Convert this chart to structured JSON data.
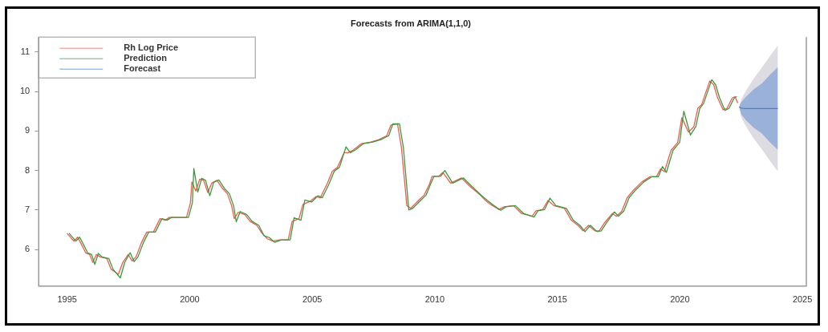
{
  "chart_data": {
    "type": "line",
    "title": "Forecasts from ARIMA(1,1,0)",
    "xlim": [
      1993.84,
      2025.16
    ],
    "xticks": [
      1995,
      2000,
      2005,
      2010,
      2015,
      2020,
      2025
    ],
    "ylim": [
      5.07,
      11.38
    ],
    "yticks": [
      6,
      7,
      8,
      9,
      10,
      11
    ],
    "grid": false,
    "legend": "top left",
    "marker": "none",
    "line_style": "solid",
    "series": [
      {
        "name": "Rh Log Price",
        "color": "#f05a55",
        "x": [
          1995.0,
          1995.27,
          1995.43,
          1995.6,
          1995.76,
          1995.92,
          1996.05,
          1996.19,
          1996.35,
          1996.62,
          1996.79,
          1997.09,
          1997.27,
          1997.49,
          1997.65,
          1997.81,
          1998.03,
          1998.25,
          1998.52,
          1998.79,
          1999.0,
          1999.17,
          1999.49,
          1999.87,
          2000.03,
          2000.09,
          2000.25,
          2000.41,
          2000.57,
          2000.74,
          2000.9,
          2001.11,
          2001.33,
          2001.54,
          2001.71,
          2001.82,
          2001.98,
          2002.25,
          2002.47,
          2002.74,
          2002.95,
          2003.17,
          2003.39,
          2003.66,
          2004.02,
          2004.18,
          2004.46,
          2004.62,
          2004.89,
          2005.16,
          2005.33,
          2005.6,
          2005.82,
          2006.03,
          2006.3,
          2006.47,
          2006.68,
          2007.01,
          2007.39,
          2007.72,
          2008.04,
          2008.21,
          2008.48,
          2008.64,
          2008.86,
          2009.02,
          2009.29,
          2009.57,
          2009.78,
          2009.89,
          2010.16,
          2010.33,
          2010.65,
          2011.09,
          2011.41,
          2011.85,
          2012.07,
          2012.28,
          2012.61,
          2012.83,
          2013.21,
          2013.54,
          2013.97,
          2014.13,
          2014.4,
          2014.62,
          2014.86,
          2015.29,
          2015.57,
          2015.84,
          2016.05,
          2016.27,
          2016.54,
          2016.71,
          2016.92,
          2017.25,
          2017.41,
          2017.63,
          2017.85,
          2018.12,
          2018.45,
          2018.77,
          2019.04,
          2019.21,
          2019.37,
          2019.64,
          2019.91,
          2020.08,
          2020.35,
          2020.57,
          2020.73,
          2020.89,
          2021.22,
          2021.38,
          2021.54,
          2021.76,
          2021.92,
          2022.14,
          2022.25,
          2022.36
        ],
        "values": [
          6.41,
          6.21,
          6.31,
          6.11,
          5.91,
          5.87,
          5.67,
          5.87,
          5.81,
          5.77,
          5.5,
          5.37,
          5.67,
          5.87,
          5.71,
          5.81,
          6.17,
          6.44,
          6.44,
          6.78,
          6.74,
          6.81,
          6.81,
          6.81,
          7.18,
          7.71,
          7.48,
          7.78,
          7.75,
          7.44,
          7.68,
          7.75,
          7.55,
          7.41,
          7.11,
          6.78,
          6.94,
          6.88,
          6.71,
          6.61,
          6.41,
          6.27,
          6.21,
          6.24,
          6.24,
          6.71,
          6.78,
          7.14,
          7.21,
          7.34,
          7.31,
          7.65,
          7.98,
          8.08,
          8.45,
          8.45,
          8.52,
          8.68,
          8.72,
          8.78,
          8.88,
          9.15,
          9.18,
          8.58,
          7.11,
          7.04,
          7.21,
          7.38,
          7.65,
          7.85,
          7.85,
          7.95,
          7.68,
          7.81,
          7.61,
          7.38,
          7.24,
          7.14,
          7.01,
          7.08,
          7.11,
          6.91,
          6.84,
          6.98,
          7.01,
          7.24,
          7.11,
          7.04,
          6.74,
          6.61,
          6.47,
          6.61,
          6.47,
          6.47,
          6.67,
          6.91,
          6.84,
          6.97,
          7.31,
          7.51,
          7.71,
          7.84,
          7.84,
          8.04,
          7.97,
          8.51,
          8.71,
          9.34,
          8.97,
          9.11,
          9.57,
          9.67,
          10.27,
          10.17,
          9.84,
          9.54,
          9.57,
          9.84,
          9.87,
          9.71
        ]
      },
      {
        "name": "Prediction",
        "color": "#3c9a3c",
        "x": [
          1995.08,
          1995.35,
          1995.51,
          1995.68,
          1995.84,
          1996.0,
          1996.13,
          1996.27,
          1996.43,
          1996.7,
          1996.87,
          1997.17,
          1997.35,
          1997.57,
          1997.73,
          1997.89,
          1998.11,
          1998.33,
          1998.6,
          1998.87,
          1999.08,
          1999.25,
          1999.57,
          1999.95,
          2000.11,
          2000.17,
          2000.33,
          2000.49,
          2000.65,
          2000.82,
          2000.98,
          2001.19,
          2001.41,
          2001.62,
          2001.79,
          2001.9,
          2002.06,
          2002.33,
          2002.55,
          2002.82,
          2003.03,
          2003.25,
          2003.47,
          2003.74,
          2004.1,
          2004.26,
          2004.54,
          2004.7,
          2004.97,
          2005.24,
          2005.41,
          2005.68,
          2005.9,
          2006.11,
          2006.38,
          2006.55,
          2006.76,
          2007.09,
          2007.47,
          2007.8,
          2008.12,
          2008.29,
          2008.56,
          2008.72,
          2008.94,
          2009.1,
          2009.37,
          2009.65,
          2009.86,
          2009.97,
          2010.24,
          2010.41,
          2010.73,
          2011.17,
          2011.49,
          2011.93,
          2012.15,
          2012.36,
          2012.69,
          2012.91,
          2013.29,
          2013.62,
          2014.05,
          2014.21,
          2014.48,
          2014.7,
          2014.94,
          2015.37,
          2015.65,
          2015.92,
          2016.13,
          2016.35,
          2016.62,
          2016.79,
          2017.0,
          2017.33,
          2017.49,
          2017.71,
          2017.93,
          2018.2,
          2018.53,
          2018.85,
          2019.12,
          2019.29,
          2019.45,
          2019.72,
          2019.99,
          2020.16,
          2020.43,
          2020.65,
          2020.81,
          2020.97,
          2021.3,
          2021.46,
          2021.62,
          2021.84,
          2022.0,
          2022.22,
          2022.33
        ],
        "values": [
          6.41,
          6.21,
          6.31,
          6.11,
          5.91,
          5.87,
          5.62,
          5.9,
          5.81,
          5.77,
          5.5,
          5.28,
          5.67,
          5.92,
          5.69,
          5.81,
          6.17,
          6.44,
          6.44,
          6.78,
          6.74,
          6.81,
          6.81,
          6.81,
          7.18,
          8.05,
          7.45,
          7.8,
          7.75,
          7.36,
          7.7,
          7.76,
          7.55,
          7.41,
          7.11,
          6.7,
          6.96,
          6.88,
          6.71,
          6.61,
          6.35,
          6.3,
          6.18,
          6.24,
          6.24,
          6.8,
          6.74,
          7.25,
          7.2,
          7.36,
          7.31,
          7.65,
          7.98,
          8.08,
          8.6,
          8.45,
          8.52,
          8.68,
          8.72,
          8.78,
          8.88,
          9.18,
          9.18,
          8.58,
          7.0,
          7.04,
          7.21,
          7.38,
          7.7,
          7.85,
          7.85,
          8.0,
          7.68,
          7.81,
          7.61,
          7.35,
          7.24,
          7.14,
          6.99,
          7.08,
          7.11,
          6.91,
          6.82,
          6.98,
          7.01,
          7.3,
          7.11,
          7.04,
          6.74,
          6.61,
          6.45,
          6.61,
          6.45,
          6.47,
          6.67,
          6.95,
          6.84,
          6.97,
          7.31,
          7.51,
          7.71,
          7.84,
          7.84,
          8.1,
          7.95,
          8.51,
          8.71,
          9.5,
          8.9,
          9.11,
          9.57,
          9.7,
          10.3,
          10.17,
          9.84,
          9.52,
          9.57,
          9.84,
          9.87
        ]
      },
      {
        "color": "#dcdce2",
        "x": [
          2022.42,
          2022.5,
          2022.67,
          2023.0,
          2023.34,
          2023.67,
          2024.0
        ],
        "values": [
          null,
          null,
          null,
          null,
          null,
          null,
          null
        ],
        "lower": [
          9.61,
          9.36,
          9.15,
          8.82,
          8.54,
          8.25,
          7.97
        ],
        "upper": [
          9.61,
          9.8,
          9.99,
          10.32,
          10.6,
          10.89,
          11.17
        ]
      },
      {
        "name": "Forecast",
        "color": "#4a7fcf",
        "x": [
          2022.42,
          2022.5,
          2022.67,
          2023.0,
          2023.34,
          2023.67,
          2024.0
        ],
        "values": [
          9.61,
          9.58,
          9.57,
          9.57,
          9.57,
          9.57,
          9.57
        ],
        "lower": [
          9.61,
          9.43,
          9.29,
          9.09,
          8.94,
          8.72,
          8.52
        ],
        "upper": [
          9.61,
          9.73,
          9.85,
          10.05,
          10.2,
          10.42,
          10.62
        ]
      }
    ]
  }
}
